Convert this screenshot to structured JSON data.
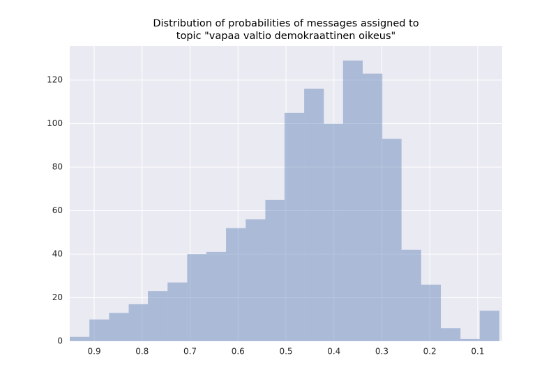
{
  "chart_data": {
    "type": "histogram",
    "title": [
      "Distribution of probabilities of messages assigned to",
      "topic \"vapaa valtio demokraattinen oikeus\""
    ],
    "bins": [
      0.055,
      0.096,
      0.136,
      0.177,
      0.218,
      0.259,
      0.299,
      0.34,
      0.381,
      0.421,
      0.462,
      0.503,
      0.543,
      0.584,
      0.625,
      0.666,
      0.706,
      0.747,
      0.788,
      0.828,
      0.869,
      0.91,
      0.951
    ],
    "counts": [
      14,
      1,
      6,
      26,
      42,
      93,
      123,
      129,
      100,
      116,
      105,
      65,
      56,
      52,
      41,
      40,
      27,
      23,
      17,
      13,
      10,
      2
    ],
    "color": "#4c72b0",
    "opacity": 0.4,
    "xlim": [
      0.951,
      0.049
    ],
    "xticks": [
      0.9,
      0.8,
      0.7,
      0.6,
      0.5,
      0.4,
      0.3,
      0.2,
      0.1
    ],
    "ylim": [
      0,
      135.7
    ],
    "yticks": [
      0,
      20,
      40,
      60,
      80,
      100,
      120
    ],
    "grid": true
  }
}
